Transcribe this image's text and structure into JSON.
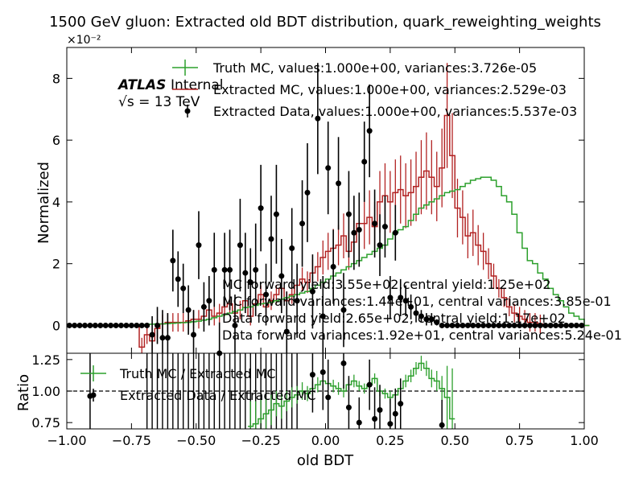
{
  "title": "1500 GeV gluon: Extracted old BDT distribution, quark_reweighting_weights",
  "colors": {
    "truth": "#2ca02c",
    "mc": "#b22222",
    "data": "#000000",
    "axis": "#000000"
  },
  "chart_data": [
    {
      "type": "line",
      "panel": "main",
      "title": "1500 GeV gluon: Extracted old BDT distribution, quark_reweighting_weights",
      "ylabel": "Normalized",
      "y_scale_label": "×10⁻²",
      "xlim": [
        -1.0,
        1.0
      ],
      "ylim": [
        -0.9,
        9.0
      ],
      "yticks": [
        0,
        2,
        4,
        6,
        8
      ],
      "ytick_labels": [
        "0",
        "2",
        "4",
        "6",
        "8"
      ],
      "atlas_label": "ATLAS",
      "atlas_sublabel": "Internal",
      "energy_label": "√s = 13 TeV",
      "legend": [
        "Truth MC, values:1.000e+00, variances:3.726e-05",
        "Extracted MC, values:1.000e+00, variances:2.529e-03",
        "Extracted Data, values:1.000e+00, variances:5.537e-03"
      ],
      "annotations": [
        "MC forward yield:3.55e+02,central yield:1.25e+02",
        "MC forward variances:1.44e+01, central variances:3.85e-01",
        "Data forward yield:2.65e+02, central yield:1.17e+02",
        "Data forward variances:1.92e+01, central variances:5.24e-01"
      ],
      "bin_edges_start": -1.0,
      "bin_width": 0.02,
      "series": [
        {
          "name": "Truth MC",
          "style": "step",
          "values": [
            0,
            0,
            0,
            0,
            0,
            0,
            0,
            0,
            0,
            0,
            0,
            0,
            0,
            0,
            0.02,
            0.03,
            0.04,
            0.05,
            0.05,
            0.06,
            0.07,
            0.08,
            0.09,
            0.1,
            0.12,
            0.14,
            0.17,
            0.2,
            0.25,
            0.3,
            0.35,
            0.4,
            0.45,
            0.5,
            0.58,
            0.6,
            0.65,
            0.7,
            0.72,
            0.75,
            0.8,
            0.85,
            0.9,
            0.95,
            1.0,
            1.05,
            1.1,
            1.2,
            1.3,
            1.4,
            1.5,
            1.6,
            1.7,
            1.8,
            1.9,
            2.0,
            2.1,
            2.2,
            2.3,
            2.4,
            2.5,
            2.6,
            2.8,
            3.0,
            3.1,
            3.2,
            3.4,
            3.6,
            3.8,
            3.9,
            4.0,
            4.1,
            4.2,
            4.3,
            4.35,
            4.4,
            4.5,
            4.6,
            4.7,
            4.75,
            4.8,
            4.8,
            4.7,
            4.5,
            4.2,
            4.0,
            3.6,
            3.0,
            2.5,
            2.1,
            2.0,
            1.7,
            1.5,
            1.2,
            1.0,
            0.8,
            0.6,
            0.4,
            0.3,
            0.2,
            0
          ]
        },
        {
          "name": "Extracted MC",
          "style": "step",
          "values": [
            0,
            0,
            0,
            0,
            0,
            0,
            0,
            0,
            0,
            0,
            0,
            0,
            0,
            0,
            -0.7,
            -0.3,
            -0.5,
            -0.1,
            0.05,
            0.1,
            0.1,
            0.1,
            0.1,
            0.15,
            0.2,
            0.2,
            0.3,
            0.5,
            0.3,
            0.4,
            0.6,
            0.7,
            0.4,
            0.5,
            0.8,
            0.3,
            0.7,
            1.0,
            0.6,
            0.8,
            1.0,
            1.2,
            0.8,
            1.0,
            1.3,
            1.5,
            1.4,
            1.7,
            1.9,
            2.2,
            2.4,
            2.5,
            2.6,
            2.9,
            2.4,
            2.7,
            3.3,
            3.3,
            3.5,
            3.2,
            4.0,
            4.2,
            4.0,
            4.3,
            4.4,
            4.2,
            4.3,
            4.5,
            4.8,
            5.0,
            4.8,
            4.5,
            5.1,
            6.8,
            5.5,
            3.8,
            3.5,
            2.9,
            3.0,
            2.6,
            2.4,
            2.0,
            1.6,
            1.2,
            0.9,
            0.6,
            0.4,
            0.3,
            0.2,
            0.1,
            0.1,
            0.05,
            0,
            0,
            0,
            0,
            0,
            0,
            0,
            0,
            0
          ]
        },
        {
          "name": "Extracted Data",
          "style": "points",
          "x": [
            -0.99,
            -0.97,
            -0.95,
            -0.93,
            -0.91,
            -0.89,
            -0.87,
            -0.85,
            -0.83,
            -0.81,
            -0.79,
            -0.77,
            -0.75,
            -0.73,
            -0.71,
            -0.69,
            -0.67,
            -0.65,
            -0.63,
            -0.61,
            -0.59,
            -0.57,
            -0.55,
            -0.53,
            -0.51,
            -0.49,
            -0.47,
            -0.45,
            -0.43,
            -0.41,
            -0.39,
            -0.37,
            -0.35,
            -0.33,
            -0.31,
            -0.29,
            -0.27,
            -0.25,
            -0.23,
            -0.21,
            -0.19,
            -0.17,
            -0.15,
            -0.13,
            -0.11,
            -0.09,
            -0.07,
            -0.05,
            -0.03,
            -0.01,
            0.01,
            0.03,
            0.05,
            0.07,
            0.09,
            0.11,
            0.13,
            0.15,
            0.17,
            0.19,
            0.21,
            0.23,
            0.25,
            0.27,
            0.29,
            0.31,
            0.33,
            0.35,
            0.37,
            0.39,
            0.41,
            0.43,
            0.45,
            0.47,
            0.49,
            0.51,
            0.53,
            0.55,
            0.57,
            0.59,
            0.61,
            0.63,
            0.65,
            0.67,
            0.69,
            0.71,
            0.73,
            0.75,
            0.77,
            0.79,
            0.81,
            0.83,
            0.85,
            0.87,
            0.89,
            0.91,
            0.93,
            0.95,
            0.97,
            0.99
          ],
          "values": [
            0,
            0,
            0,
            0,
            0,
            0,
            0,
            0,
            0,
            0,
            0,
            0,
            0,
            0,
            0,
            0,
            -0.3,
            -0.0,
            -0.4,
            -0.4,
            2.1,
            1.5,
            1.2,
            0.5,
            -0.3,
            2.6,
            0.6,
            0.8,
            1.8,
            -0.9,
            1.8,
            1.8,
            0.0,
            2.6,
            1.7,
            1.4,
            1.8,
            3.8,
            1.0,
            2.8,
            3.6,
            1.6,
            -0.2,
            2.5,
            0.8,
            3.3,
            4.3,
            1.1,
            6.7,
            0.3,
            5.1,
            1.9,
            4.6,
            0.5,
            3.6,
            3.0,
            3.1,
            5.3,
            6.3,
            3.3,
            2.6,
            3.2,
            0.9,
            3.0,
            0.9,
            0.8,
            0.6,
            0.4,
            0.3,
            0.2,
            0.2,
            0.1,
            0,
            0,
            0,
            0,
            0,
            0,
            0,
            0,
            0,
            0,
            0,
            0,
            0,
            0,
            0,
            0,
            0,
            0,
            0,
            0,
            0,
            0,
            0,
            0,
            0,
            0,
            0,
            0
          ],
          "errors": [
            0,
            0,
            0,
            0,
            0,
            0,
            0,
            0,
            0,
            0,
            0,
            0,
            0,
            0,
            0,
            0,
            0.6,
            0.6,
            0.9,
            0.8,
            1.0,
            0.9,
            0.8,
            0.8,
            0.8,
            1.1,
            0.8,
            0.8,
            1.2,
            1.0,
            1.2,
            1.3,
            1.0,
            1.5,
            1.3,
            1.1,
            1.5,
            1.4,
            1.0,
            1.4,
            1.6,
            1.2,
            1.3,
            1.3,
            1.2,
            1.4,
            1.6,
            1.2,
            1.8,
            1.3,
            1.5,
            1.2,
            1.5,
            1.2,
            1.4,
            1.2,
            1.2,
            1.3,
            1.5,
            1.1,
            1.0,
            1.0,
            0.7,
            0.9,
            0.6,
            0.5,
            0.4,
            0.3,
            0.2,
            0.2,
            0.2,
            0.1,
            0,
            0,
            0,
            0,
            0,
            0,
            0,
            0,
            0,
            0,
            0,
            0,
            0,
            0,
            0,
            0,
            0,
            0,
            0,
            0,
            0,
            0,
            0,
            0,
            0,
            0,
            0,
            0
          ]
        }
      ]
    },
    {
      "type": "line",
      "panel": "ratio",
      "xlabel": "old BDT",
      "ylabel": "Ratio",
      "xlim": [
        -1.0,
        1.0
      ],
      "ylim": [
        0.7,
        1.3
      ],
      "xticks": [
        -1.0,
        -0.75,
        -0.5,
        -0.25,
        0.0,
        0.25,
        0.5,
        0.75,
        1.0
      ],
      "xtick_labels": [
        "−1.00",
        "−0.75",
        "−0.50",
        "−0.25",
        "0.00",
        "0.25",
        "0.50",
        "0.75",
        "1.00"
      ],
      "yticks": [
        0.75,
        1.0,
        1.25
      ],
      "ytick_labels": [
        "0.75",
        "1.00",
        "1.25"
      ],
      "reference_line": 1.0,
      "legend": [
        "Truth MC / Extracted MC",
        "Extracted Data / Extracted MC"
      ],
      "series": [
        {
          "name": "Truth MC / Extracted MC",
          "style": "step",
          "x": [
            -0.29,
            -0.27,
            -0.25,
            -0.23,
            -0.21,
            -0.19,
            -0.17,
            -0.15,
            -0.13,
            -0.11,
            -0.09,
            -0.07,
            -0.05,
            -0.03,
            -0.01,
            0.01,
            0.03,
            0.05,
            0.07,
            0.09,
            0.11,
            0.13,
            0.15,
            0.17,
            0.19,
            0.21,
            0.23,
            0.25,
            0.27,
            0.29,
            0.31,
            0.33,
            0.35,
            0.37,
            0.39,
            0.41,
            0.43,
            0.45,
            0.47,
            0.49
          ],
          "values": [
            0.72,
            0.74,
            0.78,
            0.82,
            0.85,
            0.9,
            0.88,
            0.92,
            0.95,
            0.97,
            1.0,
            0.98,
            1.02,
            1.05,
            1.08,
            1.06,
            1.04,
            1.02,
            1.0,
            1.05,
            1.08,
            1.04,
            1.02,
            1.05,
            1.1,
            1.0,
            0.98,
            0.95,
            0.97,
            1.02,
            1.08,
            1.12,
            1.18,
            1.22,
            1.18,
            1.1,
            1.08,
            1.02,
            0.95,
            0.78
          ],
          "errors": [
            0.2,
            0.18,
            0.15,
            0.12,
            0.12,
            0.1,
            0.1,
            0.08,
            0.08,
            0.07,
            0.07,
            0.06,
            0.06,
            0.06,
            0.05,
            0.05,
            0.05,
            0.05,
            0.05,
            0.05,
            0.05,
            0.04,
            0.04,
            0.04,
            0.04,
            0.04,
            0.04,
            0.05,
            0.05,
            0.05,
            0.05,
            0.05,
            0.05,
            0.06,
            0.06,
            0.07,
            0.08,
            0.1,
            0.25,
            0.4
          ]
        },
        {
          "name": "Extracted Data / Extracted MC",
          "style": "points",
          "x": [
            -0.91,
            -0.05,
            -0.01,
            0.01,
            0.07,
            0.09,
            0.13,
            0.17,
            0.19,
            0.21,
            0.25,
            0.27,
            0.29,
            0.45
          ],
          "values": [
            0.96,
            1.13,
            1.15,
            0.95,
            1.22,
            0.87,
            0.75,
            1.05,
            0.78,
            0.85,
            0.74,
            0.82,
            0.9,
            0.73
          ],
          "errors": [
            0.4,
            0.3,
            0.3,
            0.3,
            0.2,
            0.25,
            0.2,
            0.2,
            0.25,
            0.2,
            0.2,
            0.2,
            0.2,
            0.2
          ]
        }
      ]
    }
  ]
}
